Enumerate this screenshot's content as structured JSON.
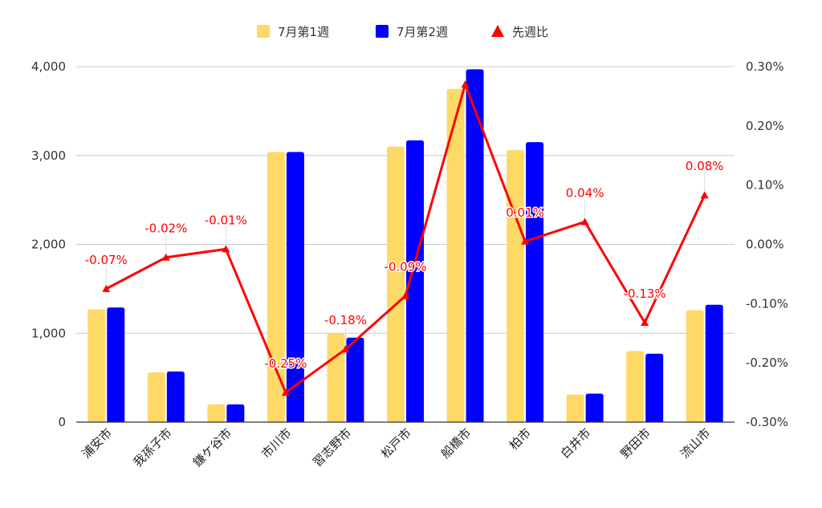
{
  "chart_data": {
    "type": "bar",
    "categories": [
      "浦安市",
      "我孫子市",
      "鎌ケ谷市",
      "市川市",
      "習志野市",
      "松戸市",
      "船橋市",
      "柏市",
      "白井市",
      "野田市",
      "流山市"
    ],
    "series": [
      {
        "name": "7月第1週",
        "type": "bar",
        "axis": "left",
        "color": "#FFD966",
        "values": [
          1270,
          560,
          200,
          3040,
          1000,
          3100,
          3750,
          3060,
          310,
          800,
          1260
        ]
      },
      {
        "name": "7月第2週",
        "type": "bar",
        "axis": "left",
        "color": "#0000FF",
        "values": [
          1290,
          570,
          200,
          3040,
          950,
          3170,
          3970,
          3150,
          320,
          770,
          1320
        ]
      },
      {
        "name": "先週比",
        "type": "line",
        "axis": "right",
        "color": "#FF0000",
        "marker": "triangle",
        "values": [
          -0.075,
          -0.022,
          -0.008,
          -0.25,
          -0.177,
          -0.087,
          0.27,
          0.005,
          0.038,
          -0.132,
          0.083
        ],
        "labels": [
          "-0.07%",
          "-0.02%",
          "-0.01%",
          "-0.25%",
          "-0.18%",
          "-0.09%",
          "",
          "0.01%",
          "0.04%",
          "-0.13%",
          "0.08%"
        ]
      }
    ],
    "y_left": {
      "min": 0,
      "max": 4000,
      "ticks": [
        0,
        1000,
        2000,
        3000,
        4000
      ],
      "tick_labels": [
        "0",
        "1,000",
        "2,000",
        "3,000",
        "4,000"
      ]
    },
    "y_right": {
      "min": -0.3,
      "max": 0.3,
      "ticks": [
        -0.3,
        -0.2,
        -0.1,
        0,
        0.1,
        0.2,
        0.3
      ],
      "tick_labels": [
        "-0.30%",
        "-0.20%",
        "-0.10%",
        "0.00%",
        "0.10%",
        "0.20%",
        "0.30%"
      ]
    },
    "grid": true,
    "legend_position": "top"
  }
}
